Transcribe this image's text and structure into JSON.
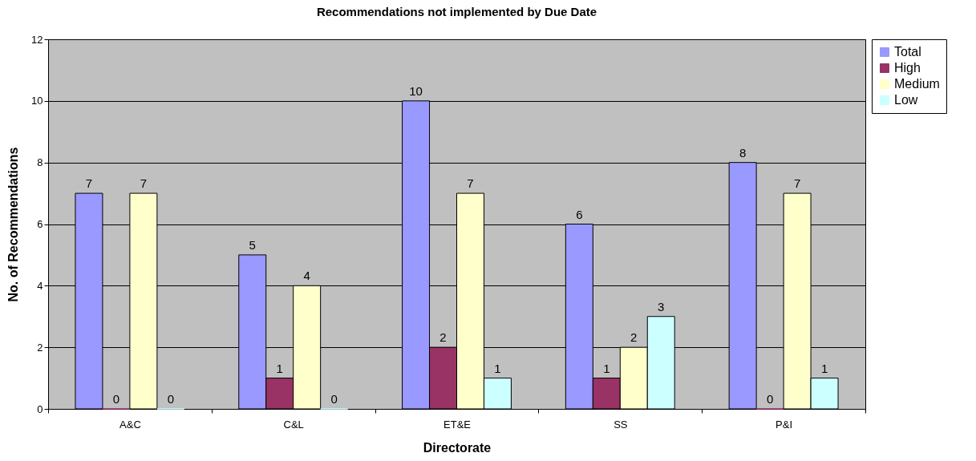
{
  "chart_data": {
    "type": "bar",
    "title": "Recommendations not implemented by Due Date",
    "xlabel": "Directorate",
    "ylabel": "No. of Recommendations",
    "categories": [
      "A&C",
      "C&L",
      "ET&E",
      "SS",
      "P&I"
    ],
    "series": [
      {
        "name": "Total",
        "color": "#9999ff",
        "values": [
          7,
          5,
          10,
          6,
          8
        ]
      },
      {
        "name": "High",
        "color": "#993366",
        "values": [
          0,
          1,
          2,
          1,
          0
        ]
      },
      {
        "name": "Medium",
        "color": "#ffffcc",
        "values": [
          7,
          4,
          7,
          2,
          7
        ]
      },
      {
        "name": "Low",
        "color": "#ccffff",
        "values": [
          0,
          0,
          1,
          3,
          1
        ]
      }
    ],
    "ylim": [
      0,
      12
    ],
    "yticks": [
      0,
      2,
      4,
      6,
      8,
      10,
      12
    ],
    "grid": "y",
    "legend": "right",
    "data_labels": true
  }
}
